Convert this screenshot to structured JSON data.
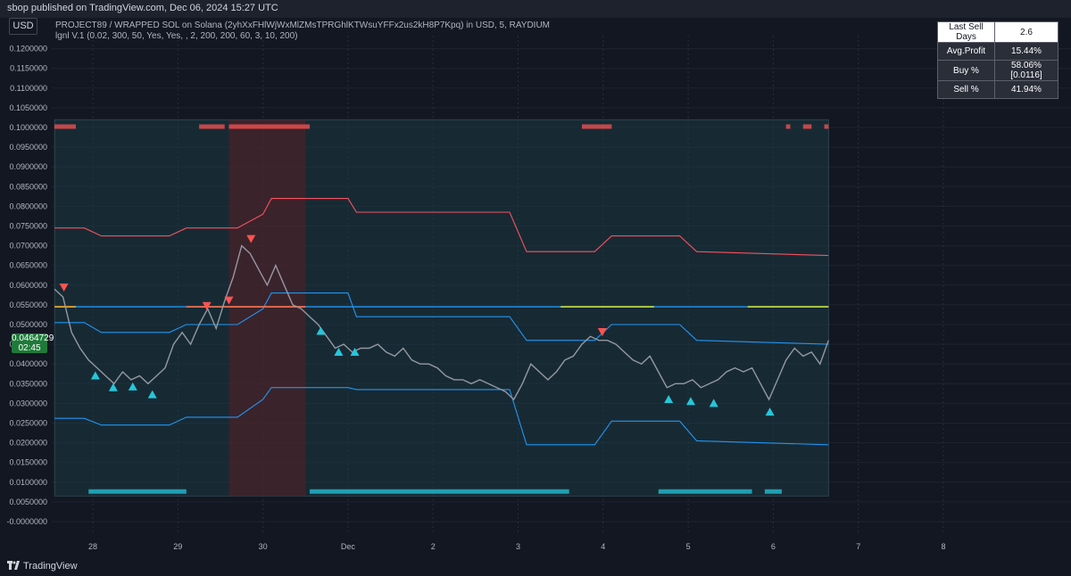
{
  "header": {
    "published": "sbop published on TradingView.com, Dec 06, 2024 15:27 UTC",
    "symbol_line": "PROJECT89 / WRAPPED SOL on Solana (2yhXxFHlWjWxMlZMsTPRGhlKTWsuYFFx2us2kH8P7Kpq) in USD, 5, RAYDIUM",
    "indicator_line": "lgnl V.1 (0.02, 300, 50, Yes, Yes, , 2, 200, 200, 60, 3, 10, 200)",
    "currency": "USD"
  },
  "price_tag": {
    "price": "0.0464729",
    "countdown": "02:45"
  },
  "stats": [
    {
      "label": "Last Sell Days",
      "value": "2.6"
    },
    {
      "label": "Avg.Profit",
      "value": "15.44%"
    },
    {
      "label": "Buy %",
      "value": "58.06% [0.0116]"
    },
    {
      "label": "Sell %",
      "value": "41.94%"
    }
  ],
  "footer": {
    "brand": "TradingView"
  },
  "colors": {
    "background": "#131722",
    "upper_band": "#f7525f",
    "lower_band": "#22ab94",
    "mid_line": "#2196f3",
    "buy": "#26c6da",
    "sell": "#ff5252",
    "candle": "#9598a1"
  },
  "chart_data": {
    "type": "line",
    "x_ticks": [
      "28",
      "29",
      "30",
      "Dec",
      "2",
      "3",
      "4",
      "5",
      "6",
      "7",
      "8"
    ],
    "y_ticks": [
      "0.1200000",
      "0.1150000",
      "0.1100000",
      "0.1050000",
      "0.1000000",
      "0.0950000",
      "0.0900000",
      "0.0850000",
      "0.0800000",
      "0.0750000",
      "0.0700000",
      "0.0650000",
      "0.0600000",
      "0.0550000",
      "0.0500000",
      "0.0450000",
      "0.0400000",
      "0.0350000",
      "0.0300000",
      "0.0250000",
      "0.0200000",
      "0.0150000",
      "0.0100000",
      "0.0050000",
      "-0.0000000"
    ],
    "ylim": [
      -0.0005,
      0.1225
    ],
    "xlim": [
      27.5,
      8.5
    ],
    "price": [
      [
        27.55,
        0.059
      ],
      [
        27.65,
        0.057
      ],
      [
        27.75,
        0.048
      ],
      [
        27.85,
        0.044
      ],
      [
        27.95,
        0.041
      ],
      [
        28.05,
        0.039
      ],
      [
        28.15,
        0.037
      ],
      [
        28.25,
        0.035
      ],
      [
        28.35,
        0.038
      ],
      [
        28.45,
        0.036
      ],
      [
        28.55,
        0.037
      ],
      [
        28.65,
        0.035
      ],
      [
        28.75,
        0.037
      ],
      [
        28.85,
        0.039
      ],
      [
        28.95,
        0.045
      ],
      [
        29.05,
        0.048
      ],
      [
        29.15,
        0.045
      ],
      [
        29.25,
        0.05
      ],
      [
        29.35,
        0.054
      ],
      [
        29.45,
        0.049
      ],
      [
        29.55,
        0.056
      ],
      [
        29.65,
        0.062
      ],
      [
        29.75,
        0.07
      ],
      [
        29.85,
        0.068
      ],
      [
        29.95,
        0.064
      ],
      [
        30.05,
        0.06
      ],
      [
        30.15,
        0.065
      ],
      [
        30.25,
        0.06
      ],
      [
        30.35,
        0.055
      ],
      [
        30.45,
        0.054
      ],
      [
        30.55,
        0.052
      ],
      [
        30.65,
        0.05
      ],
      [
        30.75,
        0.047
      ],
      [
        30.85,
        0.044
      ],
      [
        30.95,
        0.045
      ],
      [
        31.05,
        0.043
      ],
      [
        31.15,
        0.044
      ],
      [
        31.25,
        0.044
      ],
      [
        31.35,
        0.045
      ],
      [
        31.45,
        0.043
      ],
      [
        31.55,
        0.042
      ],
      [
        31.65,
        0.044
      ],
      [
        31.75,
        0.041
      ],
      [
        31.85,
        0.04
      ],
      [
        31.95,
        0.04
      ],
      [
        32.05,
        0.039
      ],
      [
        32.15,
        0.037
      ],
      [
        32.25,
        0.036
      ],
      [
        32.35,
        0.036
      ],
      [
        32.45,
        0.035
      ],
      [
        32.55,
        0.036
      ],
      [
        32.65,
        0.035
      ],
      [
        32.75,
        0.034
      ],
      [
        32.85,
        0.033
      ],
      [
        32.95,
        0.031
      ],
      [
        33.05,
        0.035
      ],
      [
        33.15,
        0.04
      ],
      [
        33.25,
        0.038
      ],
      [
        33.35,
        0.036
      ],
      [
        33.45,
        0.038
      ],
      [
        33.55,
        0.041
      ],
      [
        33.65,
        0.042
      ],
      [
        33.75,
        0.045
      ],
      [
        33.85,
        0.047
      ],
      [
        33.95,
        0.046
      ],
      [
        34.05,
        0.046
      ],
      [
        34.15,
        0.045
      ],
      [
        34.25,
        0.043
      ],
      [
        34.35,
        0.041
      ],
      [
        34.45,
        0.04
      ],
      [
        34.55,
        0.042
      ],
      [
        34.65,
        0.038
      ],
      [
        34.75,
        0.034
      ],
      [
        34.85,
        0.035
      ],
      [
        34.95,
        0.035
      ],
      [
        35.05,
        0.036
      ],
      [
        35.15,
        0.034
      ],
      [
        35.25,
        0.035
      ],
      [
        35.35,
        0.036
      ],
      [
        35.45,
        0.038
      ],
      [
        35.55,
        0.039
      ],
      [
        35.65,
        0.038
      ],
      [
        35.75,
        0.039
      ],
      [
        35.85,
        0.035
      ],
      [
        35.95,
        0.031
      ],
      [
        36.05,
        0.036
      ],
      [
        36.15,
        0.041
      ],
      [
        36.25,
        0.044
      ],
      [
        36.35,
        0.042
      ],
      [
        36.45,
        0.043
      ],
      [
        36.55,
        0.04
      ],
      [
        36.65,
        0.046
      ]
    ],
    "upper_band": [
      [
        27.55,
        0.0745
      ],
      [
        27.9,
        0.0745
      ],
      [
        28.1,
        0.0725
      ],
      [
        28.9,
        0.0725
      ],
      [
        29.1,
        0.0745
      ],
      [
        29.7,
        0.0745
      ],
      [
        30.0,
        0.078
      ],
      [
        30.1,
        0.082
      ],
      [
        31.0,
        0.082
      ],
      [
        31.1,
        0.0785
      ],
      [
        32.9,
        0.0785
      ],
      [
        33.1,
        0.0685
      ],
      [
        33.9,
        0.0685
      ],
      [
        34.1,
        0.0725
      ],
      [
        34.9,
        0.0725
      ],
      [
        35.1,
        0.0685
      ],
      [
        36.65,
        0.0675
      ]
    ],
    "mid_band": [
      [
        27.55,
        0.0545
      ],
      [
        36.65,
        0.0545
      ]
    ],
    "upper_inner": [
      [
        27.55,
        0.0505
      ],
      [
        27.9,
        0.0505
      ],
      [
        28.1,
        0.048
      ],
      [
        28.9,
        0.048
      ],
      [
        29.1,
        0.05
      ],
      [
        29.7,
        0.05
      ],
      [
        30.0,
        0.054
      ],
      [
        30.1,
        0.058
      ],
      [
        31.0,
        0.058
      ],
      [
        31.1,
        0.052
      ],
      [
        32.9,
        0.052
      ],
      [
        33.1,
        0.046
      ],
      [
        33.9,
        0.046
      ],
      [
        34.1,
        0.05
      ],
      [
        34.9,
        0.05
      ],
      [
        35.1,
        0.046
      ],
      [
        36.65,
        0.045
      ]
    ],
    "lower_band": [
      [
        27.55,
        0.0262
      ],
      [
        27.9,
        0.0262
      ],
      [
        28.1,
        0.0245
      ],
      [
        28.9,
        0.0245
      ],
      [
        29.1,
        0.0265
      ],
      [
        29.7,
        0.0265
      ],
      [
        30.0,
        0.031
      ],
      [
        30.1,
        0.034
      ],
      [
        31.0,
        0.034
      ],
      [
        31.1,
        0.0335
      ],
      [
        32.9,
        0.0335
      ],
      [
        33.1,
        0.0195
      ],
      [
        33.9,
        0.0195
      ],
      [
        34.1,
        0.0255
      ],
      [
        34.9,
        0.0255
      ],
      [
        35.1,
        0.0205
      ],
      [
        36.65,
        0.0195
      ]
    ],
    "buy_signals": [
      [
        28.03,
        0.037
      ],
      [
        28.24,
        0.034
      ],
      [
        28.47,
        0.0342
      ],
      [
        28.7,
        0.0322
      ],
      [
        30.68,
        0.0483
      ],
      [
        30.89,
        0.043
      ],
      [
        31.08,
        0.043
      ],
      [
        34.77,
        0.031
      ],
      [
        35.03,
        0.0305
      ],
      [
        35.3,
        0.03
      ],
      [
        35.96,
        0.0278
      ]
    ],
    "sell_signals": [
      [
        27.66,
        0.0595
      ],
      [
        29.34,
        0.0548
      ],
      [
        29.6,
        0.0562
      ],
      [
        29.86,
        0.0718
      ],
      [
        33.99,
        0.0482
      ]
    ],
    "bottom_bars": [
      [
        27.95,
        29.1
      ],
      [
        30.55,
        33.6
      ],
      [
        34.65,
        35.75
      ],
      [
        35.9,
        36.1
      ]
    ],
    "top_bars": [
      [
        27.55,
        27.8
      ],
      [
        29.25,
        29.55
      ],
      [
        29.6,
        30.55
      ],
      [
        33.75,
        34.1
      ],
      [
        36.15,
        36.2
      ],
      [
        36.35,
        36.45
      ],
      [
        36.6,
        36.65
      ]
    ]
  }
}
